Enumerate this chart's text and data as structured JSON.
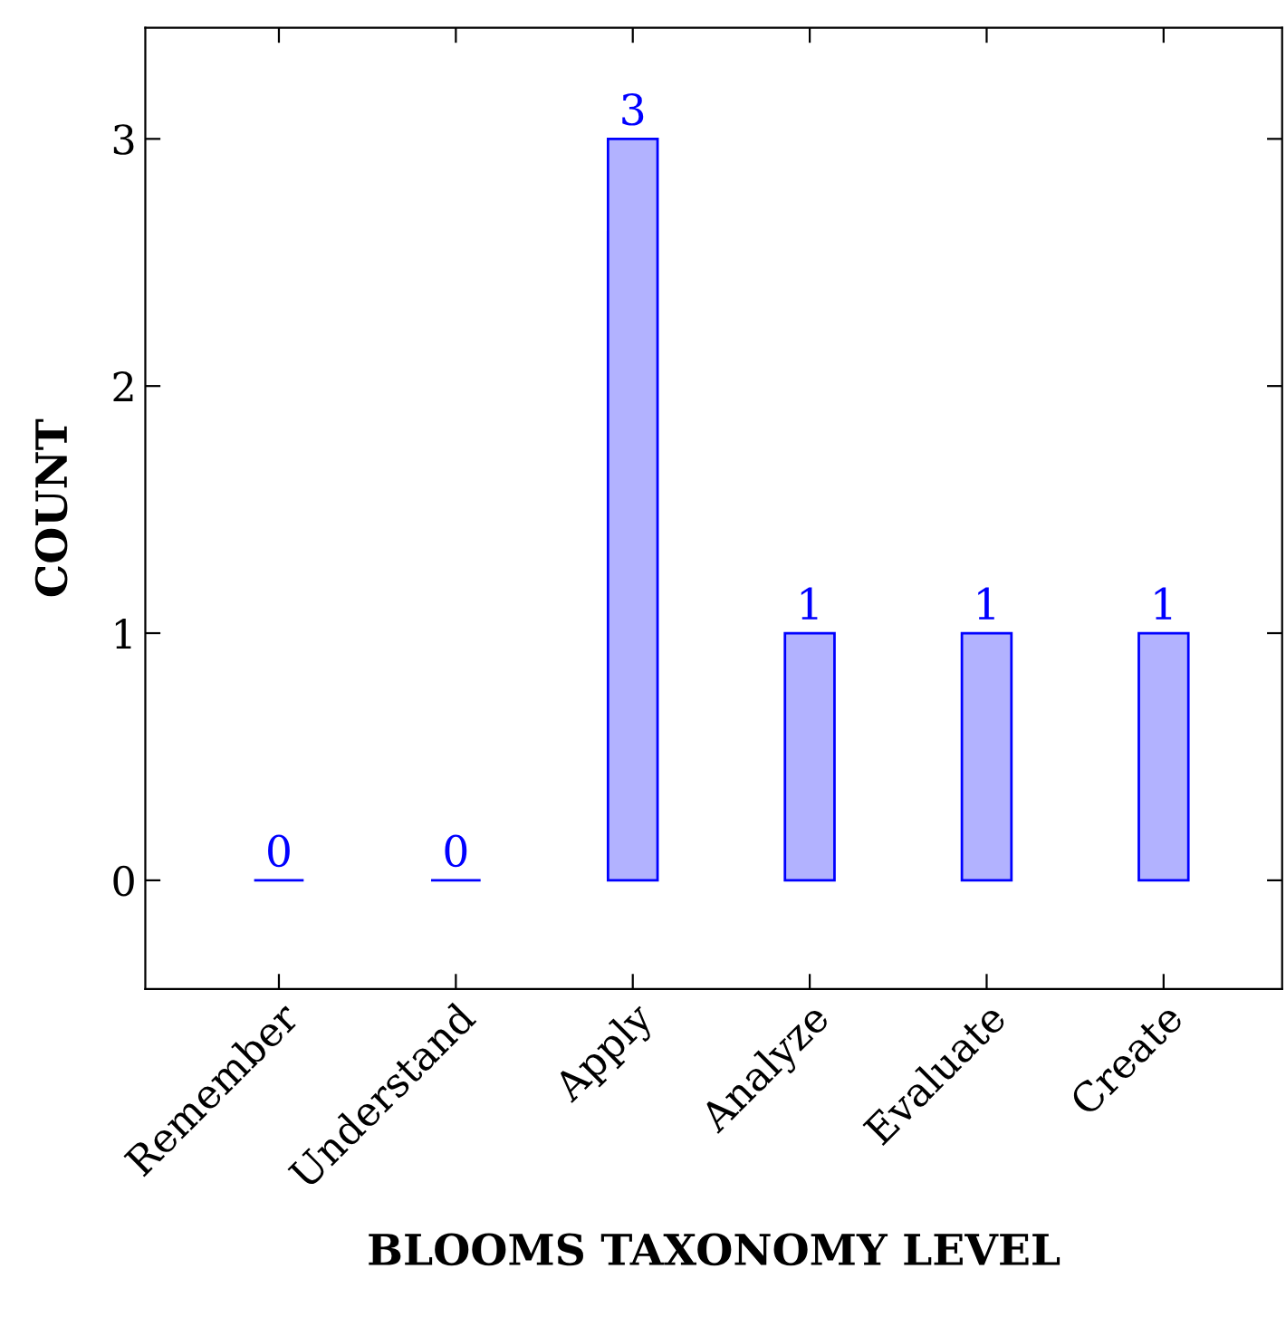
{
  "chart_data": {
    "type": "bar",
    "xlabel": "BLOOMS TAXONOMY LEVEL",
    "ylabel": "COUNT",
    "categories": [
      "Remember",
      "Understand",
      "Apply",
      "Analyze",
      "Evaluate",
      "Create"
    ],
    "values": [
      0,
      0,
      3,
      1,
      1,
      1
    ],
    "color": "#0000ff",
    "ylim": [
      -0.44,
      3.45
    ],
    "yticks": [
      0,
      1,
      2,
      3
    ],
    "data_labels": true,
    "grid": false,
    "legend": false
  }
}
